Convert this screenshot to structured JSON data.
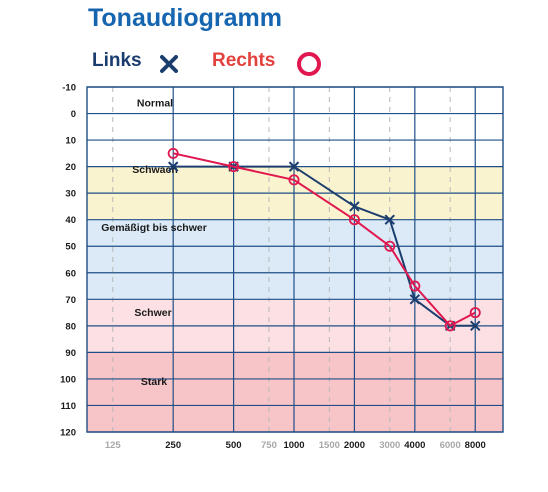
{
  "page": {
    "title": "Tonaudiogramm"
  },
  "legend": {
    "left_label": "Links",
    "right_label": "Rechts"
  },
  "colors": {
    "title": "#1565b0",
    "left": "#1b3d6e",
    "right": "#e0184f",
    "right_label": "#e2413d",
    "grid": "#1f4f86",
    "minor_tick": "#b8b8b8",
    "normal": "#ffffff",
    "schwach": "#faf3cf",
    "gemaessigt": "#dceaf8",
    "schwer": "#fde0e3",
    "stark": "#f7c4c8"
  },
  "chart_data": {
    "type": "line",
    "xscale": "log",
    "yaxis_inverted": true,
    "ylim": [
      -10,
      120
    ],
    "y_ticks": [
      "-10",
      "0",
      "10",
      "20",
      "30",
      "40",
      "50",
      "60",
      "70",
      "80",
      "90",
      "100",
      "110",
      "120"
    ],
    "x_ticks": [
      {
        "value": 125,
        "label": "125",
        "major": false
      },
      {
        "value": 250,
        "label": "250",
        "major": true
      },
      {
        "value": 500,
        "label": "500",
        "major": true
      },
      {
        "value": 750,
        "label": "750",
        "major": false
      },
      {
        "value": 1000,
        "label": "1000",
        "major": true
      },
      {
        "value": 1500,
        "label": "1500",
        "major": false
      },
      {
        "value": 2000,
        "label": "2000",
        "major": true
      },
      {
        "value": 3000,
        "label": "3000",
        "major": false
      },
      {
        "value": 4000,
        "label": "4000",
        "major": true
      },
      {
        "value": 6000,
        "label": "6000",
        "major": false
      },
      {
        "value": 8000,
        "label": "8000",
        "major": true
      }
    ],
    "x_range": [
      93,
      11000
    ],
    "bands": [
      {
        "label": "Normal",
        "from": -10,
        "to": 20,
        "color_key": "normal"
      },
      {
        "label": "Schwach",
        "from": 20,
        "to": 40,
        "color_key": "schwach"
      },
      {
        "label": "Gemäßigt bis schwer",
        "from": 40,
        "to": 70,
        "color_key": "gemaessigt"
      },
      {
        "label": "Schwer",
        "from": 70,
        "to": 90,
        "color_key": "schwer"
      },
      {
        "label": "Stark",
        "from": 90,
        "to": 120,
        "color_key": "stark"
      }
    ],
    "series": [
      {
        "name": "Links",
        "marker": "x",
        "color_key": "left",
        "x": [
          250,
          500,
          1000,
          2000,
          3000,
          4000,
          6000,
          8000
        ],
        "y": [
          20,
          20,
          20,
          35,
          40,
          70,
          80,
          80
        ]
      },
      {
        "name": "Rechts",
        "marker": "o",
        "color_key": "right",
        "x": [
          250,
          500,
          1000,
          2000,
          3000,
          4000,
          6000,
          8000
        ],
        "y": [
          15,
          20,
          25,
          40,
          50,
          65,
          80,
          75
        ]
      }
    ]
  }
}
